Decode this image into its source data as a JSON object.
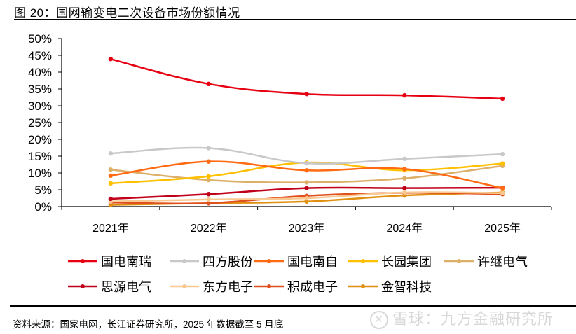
{
  "figure": {
    "title": "图 20：国网输变电二次设备市场份额情况",
    "source": "资料来源：国家电网，长江证券研究所，2025 年数据截至 5 月底",
    "watermark_icon": "xueqiu-logo-icon",
    "watermark_text": "雪球：九方金融研究所"
  },
  "chart_data": {
    "type": "line",
    "title": "国网输变电二次设备市场份额情况",
    "xlabel": "",
    "ylabel": "",
    "categories": [
      "2021年",
      "2022年",
      "2023年",
      "2024年",
      "2025年"
    ],
    "ylim": [
      0,
      50
    ],
    "yticks": [
      0,
      5,
      10,
      15,
      20,
      25,
      30,
      35,
      40,
      45,
      50
    ],
    "ytick_labels": [
      "0%",
      "5%",
      "10%",
      "15%",
      "20%",
      "25%",
      "30%",
      "35%",
      "40%",
      "45%",
      "50%"
    ],
    "y_unit": "%",
    "grid": false,
    "legend_position": "bottom",
    "smooth": true,
    "series": [
      {
        "name": "国电南瑞",
        "color": "#E60012",
        "values": [
          43.9,
          36.5,
          33.5,
          33.1,
          32.1
        ]
      },
      {
        "name": "四方股份",
        "color": "#C8C8C8",
        "values": [
          15.8,
          17.4,
          12.9,
          14.2,
          15.6
        ]
      },
      {
        "name": "国电南自",
        "color": "#FF6A13",
        "values": [
          9.2,
          13.4,
          10.8,
          11.2,
          5.5
        ]
      },
      {
        "name": "长园集团",
        "color": "#FFC000",
        "values": [
          6.9,
          9.0,
          13.1,
          10.8,
          12.8
        ]
      },
      {
        "name": "许继电气",
        "color": "#DDB06A",
        "values": [
          11.0,
          7.9,
          7.2,
          8.4,
          12.1
        ]
      },
      {
        "name": "思源电气",
        "color": "#C0001A",
        "values": [
          2.3,
          3.7,
          5.5,
          5.5,
          5.6
        ]
      },
      {
        "name": "东方电子",
        "color": "#F8C890",
        "values": [
          1.5,
          2.1,
          2.5,
          4.2,
          4.0
        ]
      },
      {
        "name": "积成电子",
        "color": "#E0501E",
        "values": [
          1.2,
          1.0,
          3.2,
          4.1,
          3.7
        ]
      },
      {
        "name": "金智科技",
        "color": "#E09010",
        "values": [
          0.5,
          1.0,
          1.5,
          3.3,
          4.2
        ]
      }
    ]
  }
}
